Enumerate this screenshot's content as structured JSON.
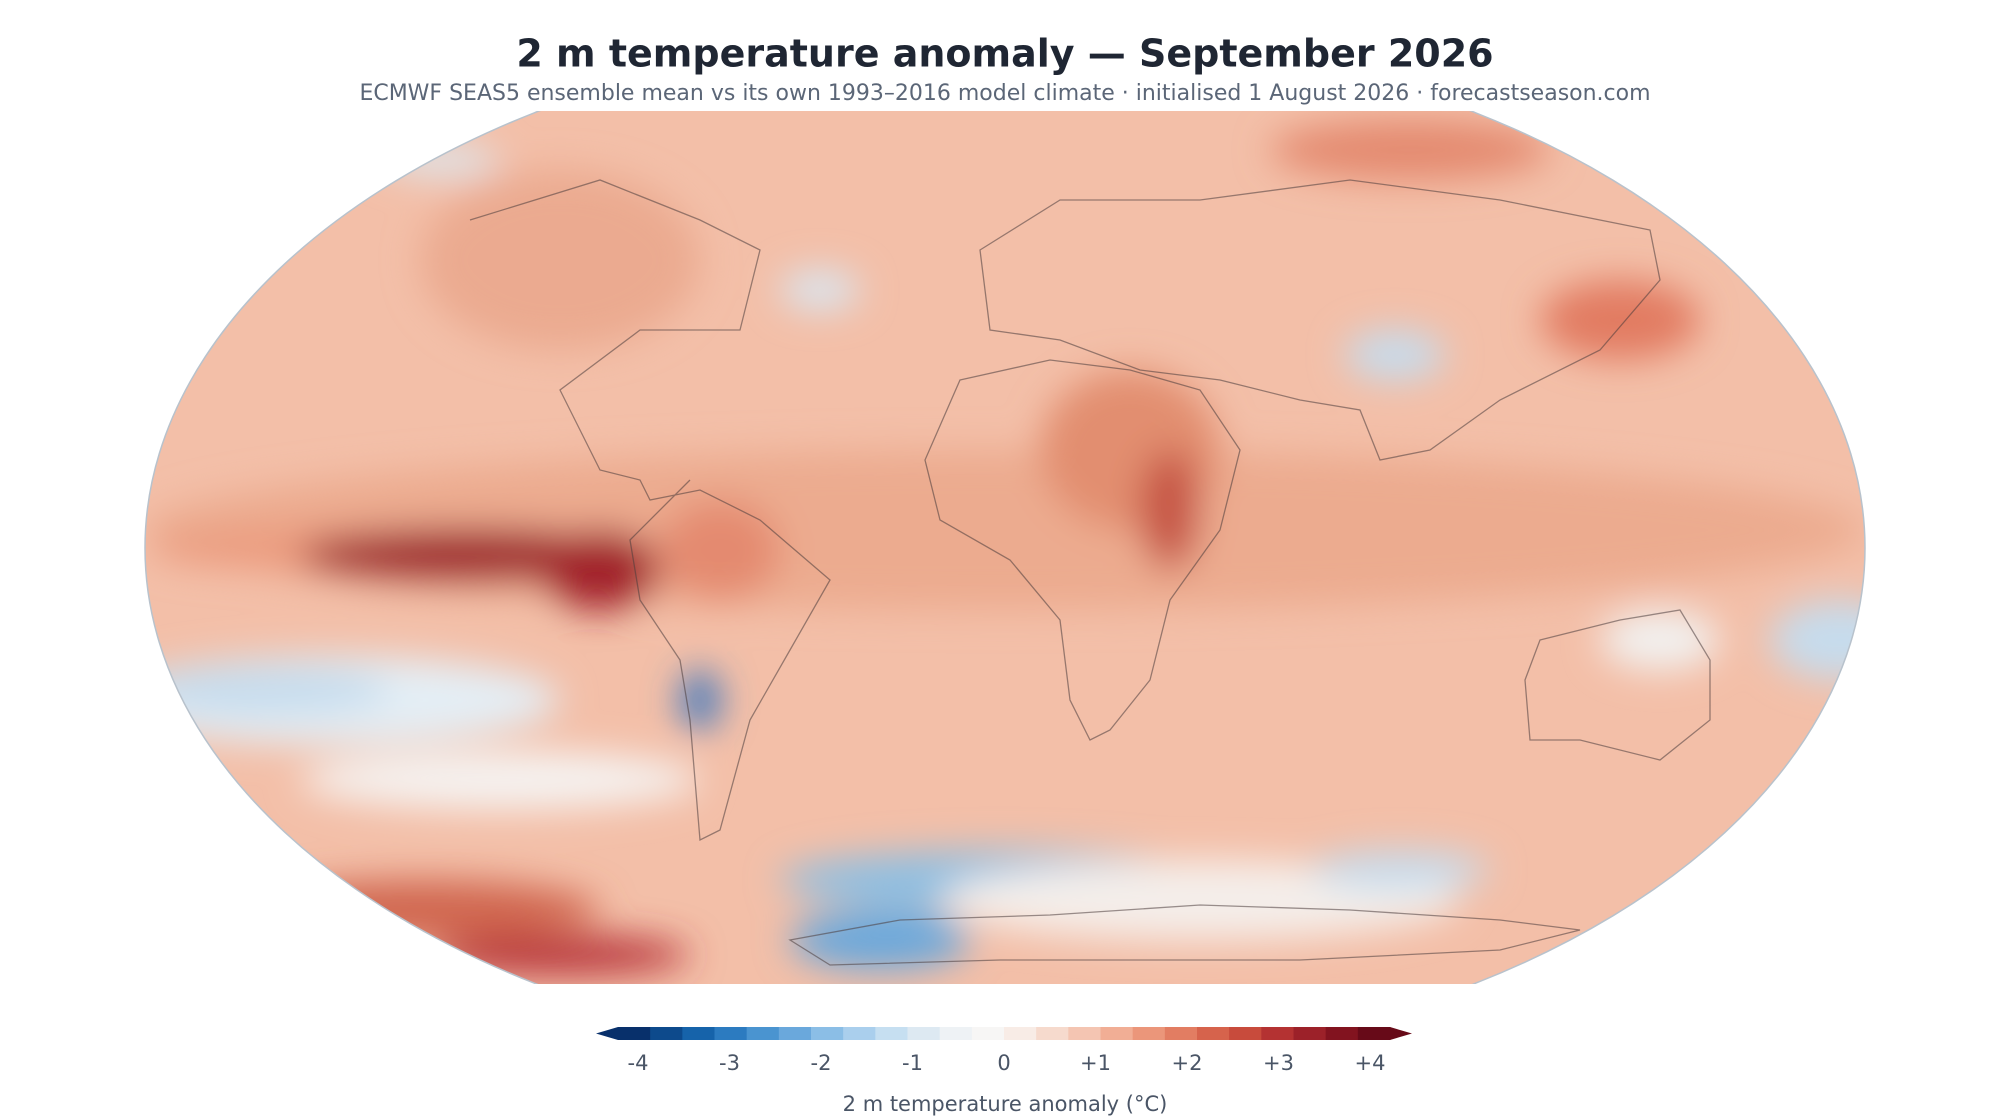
{
  "header": {
    "title": "2 m temperature anomaly — September 2026",
    "subtitle": "ECMWF SEAS5 ensemble mean vs its own 1993–2016 model climate  · initialised 1 August 2026  · forecastseason.com"
  },
  "colorbar": {
    "ticks": [
      "-4",
      "-3",
      "-2",
      "-1",
      "0",
      "+1",
      "+2",
      "+3",
      "+4"
    ],
    "label": "2 m temperature anomaly (°C)"
  }
}
